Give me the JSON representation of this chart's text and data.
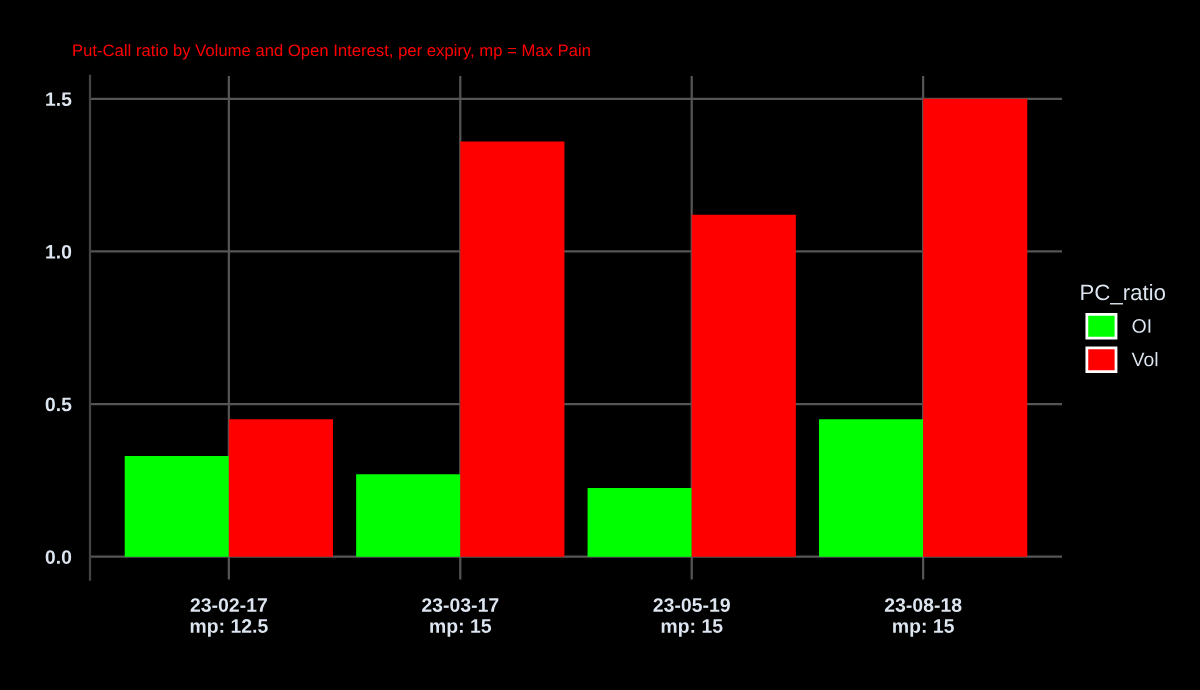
{
  "chart_data": {
    "type": "bar",
    "subtitle": "Put-Call ratio by Volume and Open Interest, per expiry, mp = Max Pain",
    "categories": [
      "23-02-17\nmp: 12.5",
      "23-03-17\nmp: 15",
      "23-05-19\nmp: 15",
      "23-08-18\nmp: 15"
    ],
    "series": [
      {
        "name": "OI",
        "color": "#00ff00",
        "values": [
          0.33,
          0.27,
          0.225,
          0.45
        ]
      },
      {
        "name": "Vol",
        "color": "#ff0000",
        "values": [
          0.45,
          1.36,
          1.12,
          1.5
        ]
      }
    ],
    "legend_title": "PC_ratio",
    "legend": "right",
    "ylim": [
      -0.075,
      1.575
    ],
    "yticks": [
      {
        "value": 0,
        "label": "0.0"
      },
      {
        "value": 0.5,
        "label": "0.5"
      },
      {
        "value": 1,
        "label": "1.0"
      },
      {
        "value": 1.5,
        "label": "1.5"
      }
    ],
    "grid": true
  }
}
